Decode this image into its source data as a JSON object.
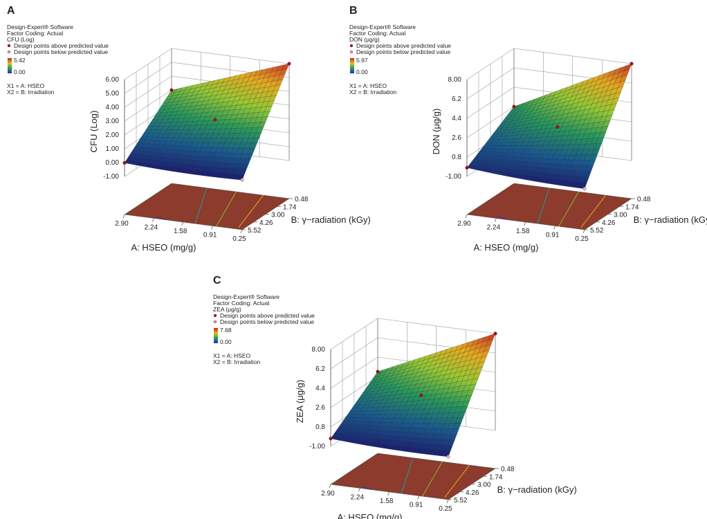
{
  "chart_data": [
    {
      "type": "surface3d",
      "panel": "A",
      "software": "Design-Expert® Software",
      "coding": "Factor Coding: Actual",
      "response": "CFU (Log)",
      "legend": [
        {
          "name": "Design points above predicted value",
          "color": "#c00000"
        },
        {
          "name": "Design points below predicted value",
          "color": "#e89090"
        }
      ],
      "colorbar": {
        "max": 5.42,
        "min": {
          "value": 0,
          "label": "0.00"
        }
      },
      "factors": [
        "X1 = A: HSEO",
        "X2 = B: Irradiation"
      ],
      "zlabel": "CFU (Log)",
      "xlabel": "A: HSEO (mg/g)",
      "ylabel": "B: γ−radiation (kGy)",
      "xlim": [
        2.9,
        0.25
      ],
      "xticks": [
        {
          "value": 2.9,
          "label": "2.90"
        },
        2.24,
        1.58,
        0.91,
        0.25
      ],
      "ylim": [
        5.52,
        0.48
      ],
      "yticks": [
        5.52,
        4.26,
        {
          "value": 3,
          "label": "3.00"
        },
        1.74,
        0.48
      ],
      "zlim": [
        -1,
        6
      ],
      "zticks": [
        {
          "value": -1,
          "label": "-1.00"
        },
        {
          "value": 0,
          "label": "0.00"
        },
        {
          "value": 1,
          "label": "1.00"
        },
        {
          "value": 2,
          "label": "2.00"
        },
        {
          "value": 3,
          "label": "3.00"
        },
        {
          "value": 4,
          "label": "4.00"
        },
        {
          "value": 5,
          "label": "5.00"
        },
        {
          "value": 6,
          "label": "6.00"
        }
      ]
    },
    {
      "type": "surface3d",
      "panel": "B",
      "software": "Design-Expert® Software",
      "coding": "Factor Coding: Actual",
      "response": "DON (μg/g)",
      "legend": [
        {
          "name": "Design points above predicted value",
          "color": "#c00000"
        },
        {
          "name": "Design points below predicted value",
          "color": "#e89090"
        }
      ],
      "colorbar": {
        "max": 5.97,
        "min": {
          "value": 0,
          "label": "0.00"
        }
      },
      "factors": [
        "X1 = A: HSEO",
        "X2 = B: Irradiation"
      ],
      "zlabel": "DON (μg/g)",
      "xlabel": "A: HSEO (mg/g)",
      "ylabel": "B: γ−radiation (kGy)",
      "xlim": [
        2.9,
        0.25
      ],
      "xticks": [
        {
          "value": 2.9,
          "label": "2.90"
        },
        2.24,
        1.58,
        0.91,
        0.25
      ],
      "ylim": [
        5.52,
        0.48
      ],
      "yticks": [
        5.52,
        4.26,
        {
          "value": 3,
          "label": "3.00"
        },
        1.74,
        0.48
      ],
      "zlim": [
        -1,
        8
      ],
      "zticks": [
        {
          "value": -1,
          "label": "-1.00"
        },
        0.8,
        2.6,
        4.4,
        6.2,
        {
          "value": 8,
          "label": "8.00"
        }
      ]
    },
    {
      "type": "surface3d",
      "panel": "C",
      "software": "Design-Expert® Software",
      "coding": "Factor Coding: Actual",
      "response": "ZEA (μg/g)",
      "legend": [
        {
          "name": "Design points above predicted value",
          "color": "#c00000"
        },
        {
          "name": "Design points below predicted value",
          "color": "#e89090"
        }
      ],
      "colorbar": {
        "max": 7.68,
        "min": {
          "value": 0,
          "label": "0.00"
        }
      },
      "factors": [
        "X1 = A: HSEO",
        "X2 = B: Irradiation"
      ],
      "zlabel": "ZEA (μg/g)",
      "xlabel": "A: HSEO (mg/g)",
      "ylabel": "B: γ−radiation (kGy)",
      "xlim": [
        2.9,
        0.25
      ],
      "xticks": [
        {
          "value": 2.9,
          "label": "2.90"
        },
        2.24,
        1.58,
        0.91,
        0.25
      ],
      "ylim": [
        5.52,
        0.48
      ],
      "yticks": [
        5.52,
        4.26,
        {
          "value": 3,
          "label": "3.00"
        },
        1.74,
        0.48
      ],
      "zlim": [
        -1,
        8
      ],
      "zticks": [
        {
          "value": -1,
          "label": "-1.00"
        },
        0.8,
        2.6,
        4.4,
        6.2,
        {
          "value": 8,
          "label": "8.00"
        }
      ]
    }
  ]
}
